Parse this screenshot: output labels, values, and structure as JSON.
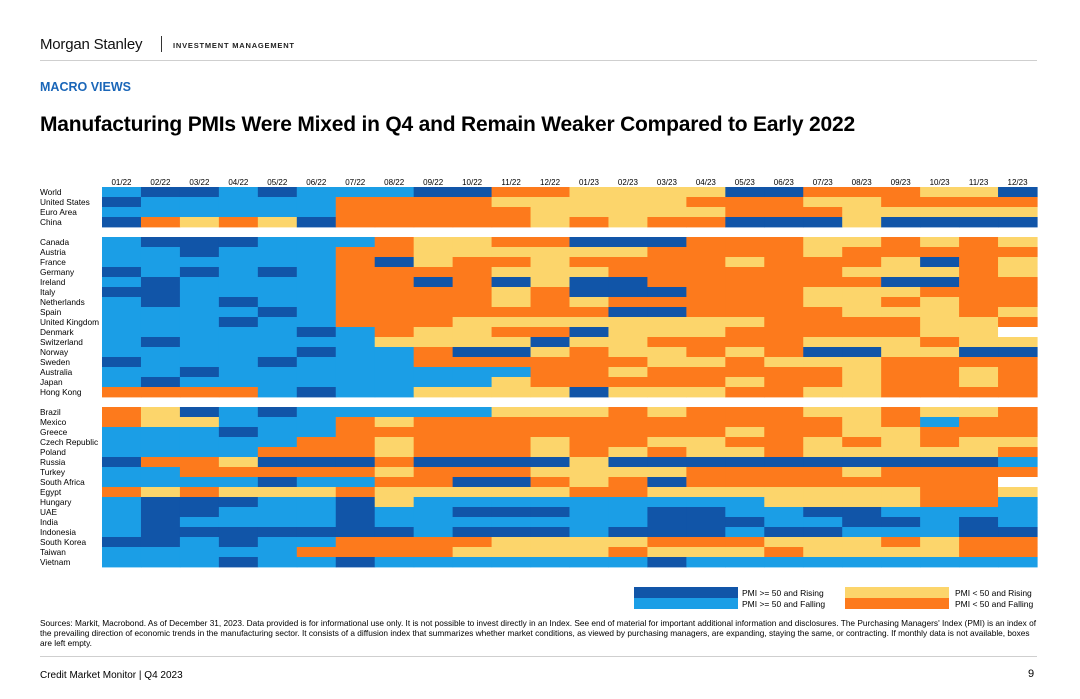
{
  "header": {
    "brand": "Morgan Stanley",
    "sub_brand": "INVESTMENT MANAGEMENT",
    "section": "MACRO VIEWS",
    "title": "Manufacturing PMIs Were Mixed in Q4 and Remain Weaker Compared to Early 2022"
  },
  "colors": {
    "A": "#1155a8",
    "B": "#1b9ee6",
    "C": "#fcd56b",
    "D": "#fd7a1c",
    "empty": "#ffffff"
  },
  "chart_data": {
    "type": "heatmap",
    "months": [
      "01/22",
      "02/22",
      "03/22",
      "04/22",
      "05/22",
      "06/22",
      "07/22",
      "08/22",
      "09/22",
      "10/22",
      "11/22",
      "12/22",
      "01/23",
      "02/23",
      "03/23",
      "04/23",
      "05/23",
      "06/23",
      "07/23",
      "08/23",
      "09/23",
      "10/23",
      "11/23",
      "12/23"
    ],
    "legend": [
      {
        "key": "A",
        "label": "PMI >= 50 and Rising"
      },
      {
        "key": "B",
        "label": "PMI >= 50 and Falling"
      },
      {
        "key": "C",
        "label": "PMI < 50 and Rising"
      },
      {
        "key": "D",
        "label": "PMI < 50 and Falling"
      }
    ],
    "groups": [
      {
        "rows": [
          {
            "name": "World",
            "values": "BAABABBBAADDCCCCAADDDCCA"
          },
          {
            "name": "United States",
            "values": "ABBBBBDDDDCCCCCDDDCCDDDD"
          },
          {
            "name": "Euro Area",
            "values": "BBBBBBDDDDDCCCCCDDDCCCCC"
          },
          {
            "name": "China",
            "values": "ADCDCADDDDDCDCDDAAACAAAA"
          }
        ]
      },
      {
        "rows": [
          {
            "name": "Canada",
            "values": "BAAABBBDCCDDAAADDDCCDCDC"
          },
          {
            "name": "Austria",
            "values": "BBABBBDDCCCCCCDDDDCDDDDD"
          },
          {
            "name": "France",
            "values": "BBBBBBDACDDCDDDDCDDDCADC"
          },
          {
            "name": "Germany",
            "values": "ABABABDDDDCCCDDDDDDCCCDC"
          },
          {
            "name": "Ireland",
            "values": "BABBBBDDADACAADDDDDDAADD"
          },
          {
            "name": "Italy",
            "values": "AABBBBDDDDCDAAADDDCCCDDD"
          },
          {
            "name": "Netherlands",
            "values": "BABABBDDDDCDCDDDDDCCDCDD"
          },
          {
            "name": "Spain",
            "values": "BBBBABDDDDDDDAADDDDCCCDC"
          },
          {
            "name": "United Kingdom",
            "values": "BBBABBDDDCCCCCCCCDDDDCCD"
          },
          {
            "name": "Denmark",
            "values": "BBBBBABDCCDDACCCDDDDDCCE"
          },
          {
            "name": "Switzerland",
            "values": "BABBBBBCCCCACCDDDDCCCDCC"
          },
          {
            "name": "Norway",
            "values": "BBBBBABBDAACDCCDCDAACCAA"
          },
          {
            "name": "Sweden",
            "values": "ABBBABBBDDDDDDCCDCCCDDDD"
          },
          {
            "name": "Australia",
            "values": "BBABBBBBBBBDDCDDDDDCDDCD"
          },
          {
            "name": "Japan",
            "values": "BABBBBBBBBCDDDDDCDDCDDCD"
          },
          {
            "name": "Hong Kong",
            "values": "DDDDBABBCCCCACCCDDCCDDDD"
          }
        ]
      },
      {
        "rows": [
          {
            "name": "Brazil",
            "values": "DCABABBBBBCCCDCDDDCCDCCD"
          },
          {
            "name": "Mexico",
            "values": "DCCBBBDCDDDDDDDDDDDCDBDD"
          },
          {
            "name": "Greece",
            "values": "BBBABBDDDDDDDDDDCDDCCDDD"
          },
          {
            "name": "Czech Republic",
            "values": "BBBBBDDCDDDCDDCCDDCDCDCC"
          },
          {
            "name": "Poland",
            "values": "BBBBDDDCDDDCDCDCCDCCCCCD"
          },
          {
            "name": "Russia",
            "values": "ADDCAAADAAAACAAAAAAAAAAB"
          },
          {
            "name": "Turkey",
            "values": "BBDDDDDCDDDCCCCDDDDCDDDD"
          },
          {
            "name": "South Africa",
            "values": "BBBBABBDDAADCDADDDDDDDDE"
          },
          {
            "name": "Egypt",
            "values": "DCDCCCDCCCCCDDCCCCCCCDDC"
          },
          {
            "name": "Hungary",
            "values": "BAAABBACBBBBBBBBBCCCCDDB"
          },
          {
            "name": "UAE",
            "values": "BAABBBABBAAABBAABBAABBBB"
          },
          {
            "name": "India",
            "values": "BABBBBABBBBBBBAAABBAABAB"
          },
          {
            "name": "Indonesia",
            "values": "BAAAAAAABAAABAAABAABBBAA"
          },
          {
            "name": "South Korea",
            "values": "AABABBDDDDCCCCDDDCCCDCDD"
          },
          {
            "name": "Taiwan",
            "values": "BBBBBDDDDCCCCDCCCDCCCCDD"
          },
          {
            "name": "Vietnam",
            "values": "BBBABBABBBBBBBABBBBBBBBB"
          }
        ]
      }
    ]
  },
  "footnote": "Sources: Markit, Macrobond. As of December 31, 2023. Data provided is for informational use only. It is not possible to invest directly in an Index. See end of material for important additional information and disclosures. The Purchasing Managers' Index (PMI) is an index of the prevailing direction of economic trends in the manufacturing sector. It consists of a diffusion index that summarizes whether market conditions, as viewed by purchasing managers, are expanding, staying the same, or contracting. If monthly data is not available, boxes are left empty.",
  "footer": {
    "left": "Credit Market Monitor | Q4 2023",
    "page": "9"
  }
}
